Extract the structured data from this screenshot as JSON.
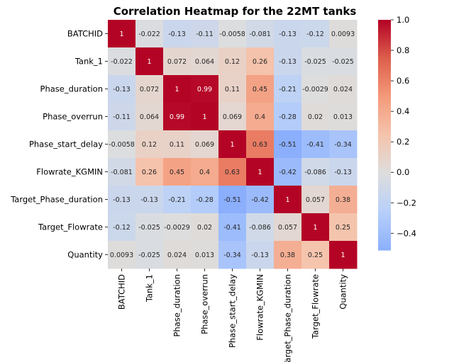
{
  "chart_data": {
    "type": "heatmap",
    "title": "Correlation Heatmap for the 22MT tanks",
    "labels": [
      "BATCHID",
      "Tank_1",
      "Phase_duration",
      "Phase_overrun",
      "Phase_start_delay",
      "Flowrate_KGMIN",
      "Target_Phase_duration",
      "Target_Flowrate",
      "Quantity"
    ],
    "matrix": [
      [
        1,
        -0.022,
        -0.13,
        -0.11,
        -0.0058,
        -0.081,
        -0.13,
        -0.12,
        0.0093
      ],
      [
        -0.022,
        1,
        0.072,
        0.064,
        0.12,
        0.26,
        -0.13,
        -0.025,
        -0.025
      ],
      [
        -0.13,
        0.072,
        1,
        0.99,
        0.11,
        0.45,
        -0.21,
        -0.0029,
        0.024
      ],
      [
        -0.11,
        0.064,
        0.99,
        1,
        0.069,
        0.4,
        -0.28,
        0.02,
        0.013
      ],
      [
        -0.0058,
        0.12,
        0.11,
        0.069,
        1,
        0.63,
        -0.51,
        -0.41,
        -0.34
      ],
      [
        -0.081,
        0.26,
        0.45,
        0.4,
        0.63,
        1,
        -0.42,
        -0.086,
        -0.13
      ],
      [
        -0.13,
        -0.13,
        -0.21,
        -0.28,
        -0.51,
        -0.42,
        1,
        0.057,
        0.38
      ],
      [
        -0.12,
        -0.025,
        -0.0029,
        0.02,
        -0.41,
        -0.086,
        0.057,
        1,
        0.25
      ],
      [
        0.0093,
        -0.025,
        0.024,
        0.013,
        -0.34,
        -0.13,
        0.38,
        0.25,
        1
      ]
    ],
    "cell_text": [
      [
        "1",
        "-0.022",
        "-0.13",
        "-0.11",
        "-0.0058",
        "-0.081",
        "-0.13",
        "-0.12",
        "0.0093"
      ],
      [
        "-0.022",
        "1",
        "0.072",
        "0.064",
        "0.12",
        "0.26",
        "-0.13",
        "-0.025",
        "-0.025"
      ],
      [
        "-0.13",
        "0.072",
        "1",
        "0.99",
        "0.11",
        "0.45",
        "-0.21",
        "-0.0029",
        "0.024"
      ],
      [
        "-0.11",
        "0.064",
        "0.99",
        "1",
        "0.069",
        "0.4",
        "-0.28",
        "0.02",
        "0.013"
      ],
      [
        "-0.0058",
        "0.12",
        "0.11",
        "0.069",
        "1",
        "0.63",
        "-0.51",
        "-0.41",
        "-0.34"
      ],
      [
        "-0.081",
        "0.26",
        "0.45",
        "0.4",
        "0.63",
        "1",
        "-0.42",
        "-0.086",
        "-0.13"
      ],
      [
        "-0.13",
        "-0.13",
        "-0.21",
        "-0.28",
        "-0.51",
        "-0.42",
        "1",
        "0.057",
        "0.38"
      ],
      [
        "-0.12",
        "-0.025",
        "-0.0029",
        "0.02",
        "-0.41",
        "-0.086",
        "0.057",
        "1",
        "0.25"
      ],
      [
        "0.0093",
        "-0.025",
        "0.024",
        "0.013",
        "-0.34",
        "-0.13",
        "0.38",
        "0.25",
        "1"
      ]
    ],
    "colormap": "coolwarm",
    "vmin": -0.51,
    "vmax": 1.0,
    "center": 0,
    "colorbar_ticks": [
      1.0,
      0.8,
      0.6,
      0.4,
      0.2,
      0.0,
      -0.2,
      -0.4
    ],
    "colorbar_tick_labels": [
      "1.0",
      "0.8",
      "0.6",
      "0.4",
      "0.2",
      "0.0",
      "−0.2",
      "−0.4"
    ],
    "colors": {
      "cold": "#3b4cc0",
      "neutral": "#dddddd",
      "hot": "#b40426"
    }
  }
}
